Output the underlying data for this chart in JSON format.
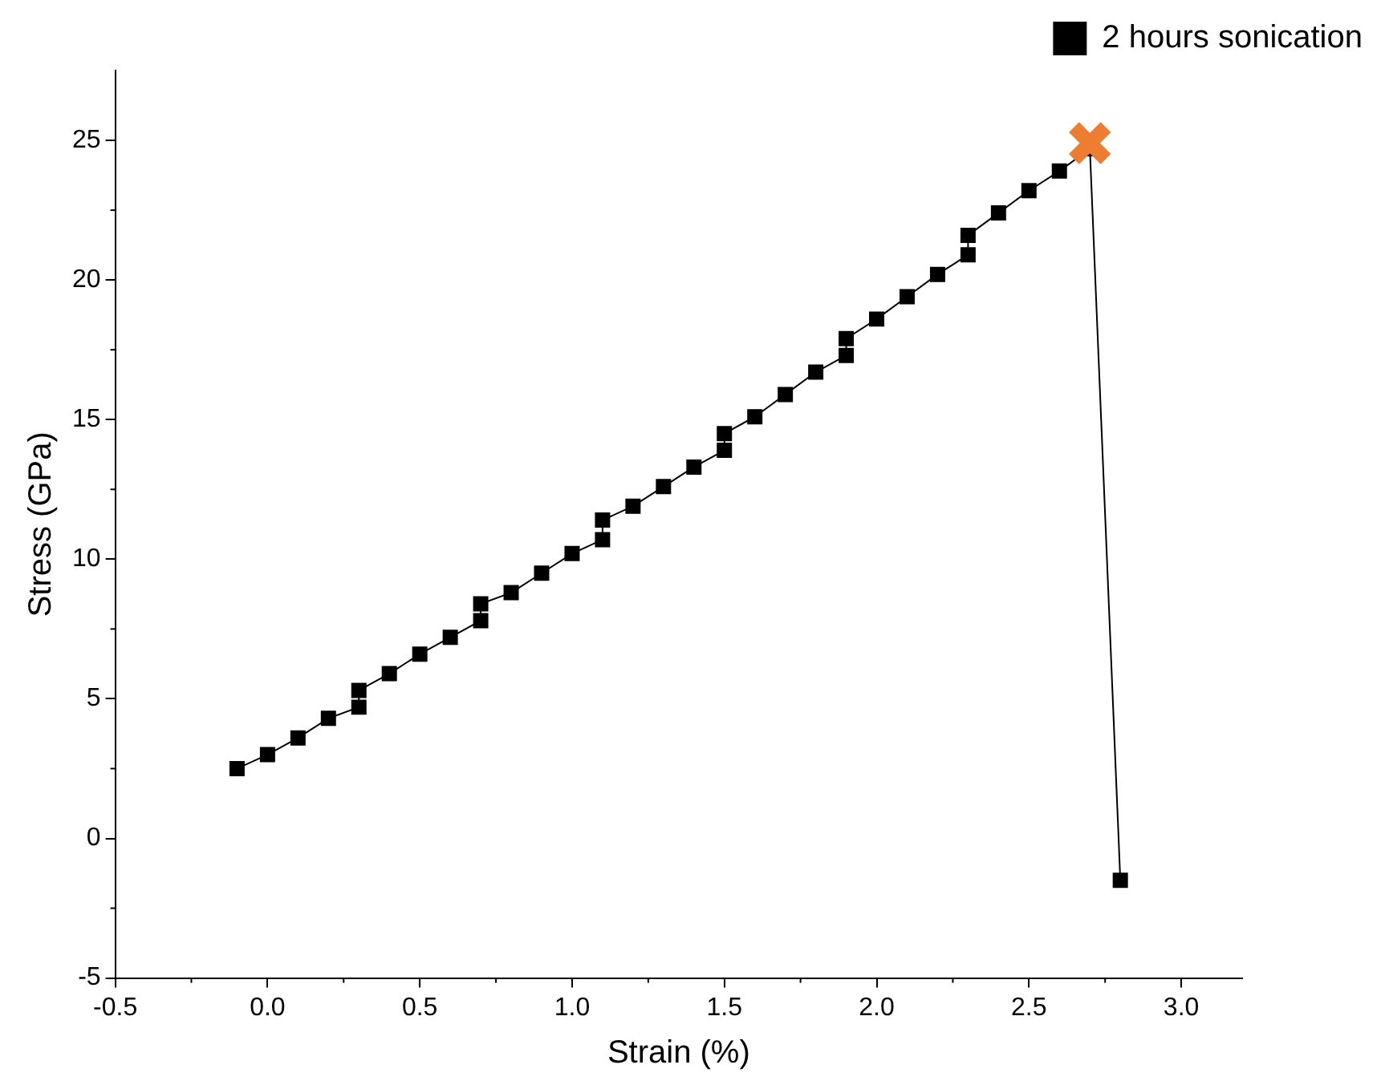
{
  "chart_data": {
    "type": "line",
    "xlabel": "Strain (%)",
    "ylabel": "Stress (GPa)",
    "xlim": [
      -0.5,
      3.2
    ],
    "xticks": [
      -0.5,
      {
        "value": 0,
        "label": "0.0"
      },
      0.5,
      {
        "value": 1,
        "label": "1.0"
      },
      1.5,
      {
        "value": 2,
        "label": "2.0"
      },
      2.5,
      {
        "value": 3,
        "label": "3.0"
      }
    ],
    "ylim": [
      -5,
      27.5
    ],
    "yticks": [
      -5,
      0,
      5,
      10,
      15,
      20,
      25
    ],
    "grid": false,
    "legend": "top right",
    "marker": "square",
    "line_style": "solid",
    "series": [
      {
        "name": "2 hours sonication",
        "color": "#000000",
        "x": [
          -0.1,
          0,
          0.1,
          0.2,
          0.3,
          0.3,
          0.4,
          0.5,
          0.6,
          0.7,
          0.7,
          0.8,
          0.9,
          1,
          1.1,
          1.1,
          1.2,
          1.3,
          1.4,
          1.5,
          1.5,
          1.6,
          1.7,
          1.8,
          1.9,
          1.9,
          2,
          2.1,
          2.2,
          2.3,
          2.3,
          2.4,
          2.5,
          2.6,
          2.7,
          2.8
        ],
        "values": [
          2.5,
          3,
          3.6,
          4.3,
          4.7,
          5.3,
          5.9,
          6.6,
          7.2,
          7.8,
          8.4,
          8.8,
          9.5,
          10.2,
          10.7,
          11.4,
          11.9,
          12.6,
          13.3,
          13.9,
          14.5,
          15.1,
          15.9,
          16.7,
          17.3,
          17.9,
          18.6,
          19.4,
          20.2,
          20.9,
          21.6,
          22.4,
          23.2,
          23.9,
          24.7,
          -1.5
        ]
      },
      {
        "type": "scatter",
        "color": "#ed7d31",
        "marker": "cross",
        "x": [
          2.7
        ],
        "values": [
          24.9
        ]
      }
    ]
  }
}
